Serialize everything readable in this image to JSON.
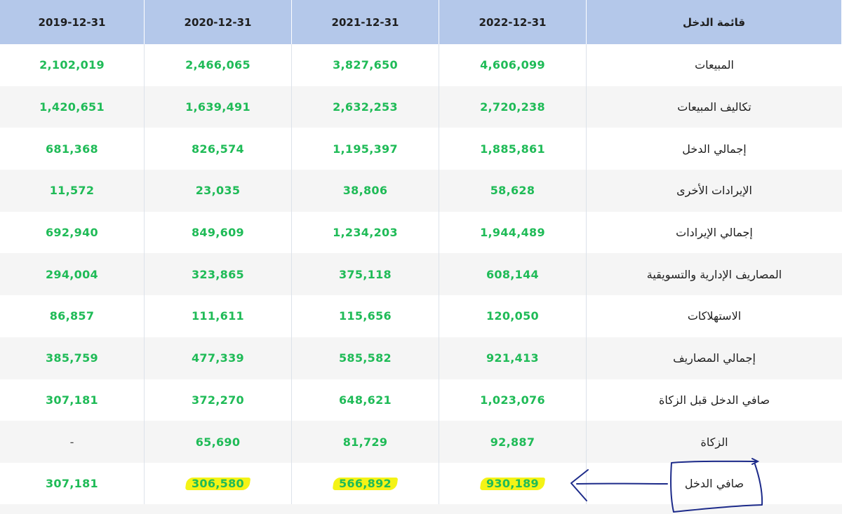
{
  "table": {
    "headers": {
      "label_col": "قائمة الدخل",
      "years": [
        "2022-12-31",
        "2021-12-31",
        "2020-12-31",
        "2019-12-31"
      ]
    },
    "rows": [
      {
        "label": "المبيعات",
        "values": [
          "4,606,099",
          "3,827,650",
          "2,466,065",
          "2,102,019"
        ]
      },
      {
        "label": "تكاليف المبيعات",
        "values": [
          "2,720,238",
          "2,632,253",
          "1,639,491",
          "1,420,651"
        ]
      },
      {
        "label": "إجمالي الدخل",
        "values": [
          "1,885,861",
          "1,195,397",
          "826,574",
          "681,368"
        ]
      },
      {
        "label": "الإيرادات الأخرى",
        "values": [
          "58,628",
          "38,806",
          "23,035",
          "11,572"
        ]
      },
      {
        "label": "إجمالي الإيرادات",
        "values": [
          "1,944,489",
          "1,234,203",
          "849,609",
          "692,940"
        ]
      },
      {
        "label": "المصاريف الإدارية والتسويقية",
        "values": [
          "608,144",
          "375,118",
          "323,865",
          "294,004"
        ]
      },
      {
        "label": "الاستهلاكات",
        "values": [
          "120,050",
          "115,656",
          "111,611",
          "86,857"
        ]
      },
      {
        "label": "إجمالي المصاريف",
        "values": [
          "921,413",
          "585,582",
          "477,339",
          "385,759"
        ]
      },
      {
        "label": "صافي الدخل قبل الزكاة",
        "values": [
          "1,023,076",
          "648,621",
          "372,270",
          "307,181"
        ]
      },
      {
        "label": "الزكاة",
        "values": [
          "92,887",
          "81,729",
          "65,690",
          "-"
        ]
      },
      {
        "label": "صافي الدخل",
        "values": [
          "930,189",
          "566,892",
          "306,580",
          "307,181"
        ]
      }
    ]
  },
  "annotations": {
    "highlight_color": "#f4f316",
    "highlighted_cells": [
      "930,189",
      "566,892",
      "306,580"
    ],
    "ink_color": "#1d2b8a"
  },
  "colors": {
    "header_bg": "#b4c8ea",
    "value_text": "#1fbb57",
    "stripe": "#f5f5f5"
  }
}
